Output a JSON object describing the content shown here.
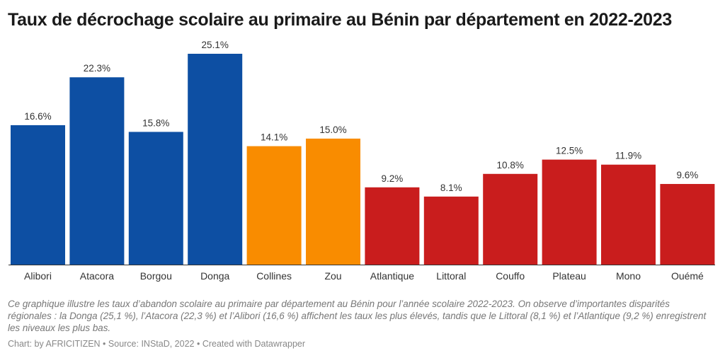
{
  "title": "Taux de décrochage scolaire au primaire au Bénin par département en 2022-2023",
  "chart_data": {
    "type": "bar",
    "title": "Taux de décrochage scolaire au primaire au Bénin par département en 2022-2023",
    "categories": [
      "Alibori",
      "Atacora",
      "Borgou",
      "Donga",
      "Collines",
      "Zou",
      "Atlantique",
      "Littoral",
      "Couffo",
      "Plateau",
      "Mono",
      "Ouémé"
    ],
    "values": [
      16.6,
      22.3,
      15.8,
      25.1,
      14.1,
      15.0,
      9.2,
      8.1,
      10.8,
      12.5,
      11.9,
      9.6
    ],
    "labels": [
      "16.6%",
      "22.3%",
      "15.8%",
      "25.1%",
      "14.1%",
      "15.0%",
      "9.2%",
      "8.1%",
      "10.8%",
      "12.5%",
      "11.9%",
      "9.6%"
    ],
    "groups": [
      "north",
      "north",
      "north",
      "north",
      "center",
      "center",
      "south",
      "south",
      "south",
      "south",
      "south",
      "south"
    ],
    "colors": {
      "north": "#0d4fa3",
      "center": "#f98c00",
      "south": "#c91d1d"
    },
    "xlabel": "",
    "ylabel": "",
    "ylim": [
      0,
      25.1
    ],
    "grid": false
  },
  "description": "Ce graphique illustre les taux d’abandon scolaire au primaire par département au Bénin pour l’année scolaire 2022-2023. On observe d’importantes disparités régionales : la Donga (25,1 %), l’Atacora (22,3 %) et l’Alibori (16,6 %) affichent les taux les plus élevés, tandis que le Littoral (8,1 %) et l’Atlantique (9,2 %) enregistrent les niveaux les plus bas.",
  "footer": "Chart: by AFRICITIZEN • Source: INStaD, 2022 • Created with Datawrapper"
}
